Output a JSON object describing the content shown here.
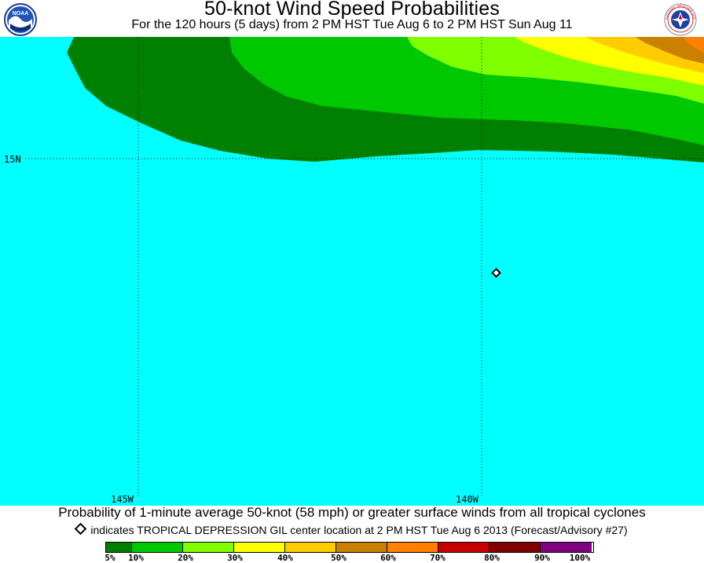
{
  "header": {
    "title": "50-knot Wind Speed Probabilities",
    "subtitle": "For the 120 hours (5 days) from 2 PM HST Tue Aug 6 to 2 PM HST Sun Aug 11",
    "left_logo": "noaa-logo",
    "left_logo_text": "NOAA",
    "right_logo": "national-weather-service-logo",
    "right_logo_text": "NATIONAL WEATHER SERVICE"
  },
  "map": {
    "background_color": "#00ffff",
    "latitude_labels": [
      {
        "text": "15N"
      }
    ],
    "longitude_labels": [
      {
        "text": "145W"
      },
      {
        "text": "140W"
      }
    ],
    "bands": [
      {
        "level": "5%",
        "color": "#008000"
      },
      {
        "level": "10%",
        "color": "#00c800"
      },
      {
        "level": "20%",
        "color": "#80ff00"
      },
      {
        "level": "30%",
        "color": "#ffff00"
      },
      {
        "level": "40%",
        "color": "#ffcc00"
      },
      {
        "level": "50%",
        "color": "#cc8000"
      },
      {
        "level": "60%",
        "color": "#ff8000"
      }
    ],
    "storm_marker": "diamond-icon"
  },
  "footer": {
    "description": "Probability of 1-minute average 50-knot (58 mph) or greater surface winds from all tropical cyclones",
    "marker_note": "indicates TROPICAL DEPRESSION GIL center location at 2 PM HST Tue Aug 6 2013 (Forecast/Advisory #27)"
  },
  "legend": {
    "swatches": [
      {
        "color": "#008000"
      },
      {
        "color": "#00c800"
      },
      {
        "color": "#80ff00"
      },
      {
        "color": "#ffff00"
      },
      {
        "color": "#ffcc00"
      },
      {
        "color": "#cc8000"
      },
      {
        "color": "#ff8000"
      },
      {
        "color": "#c80000"
      },
      {
        "color": "#800000"
      },
      {
        "color": "#800080"
      }
    ],
    "labels": [
      "5%",
      "10%",
      "20%",
      "30%",
      "40%",
      "50%",
      "60%",
      "70%",
      "80%",
      "90%",
      "100%"
    ]
  }
}
